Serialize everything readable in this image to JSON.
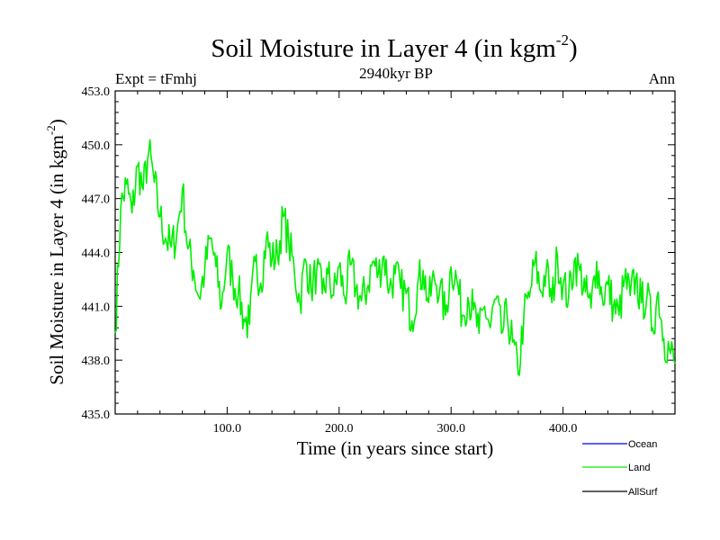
{
  "chart_data": {
    "type": "line",
    "title": "Soil Moisture in Layer 4 (in kgm",
    "title_sup": "-2",
    "title_close": ")",
    "subtitle": "2940kyr BP",
    "left_label": "Expt = tFmhj",
    "right_label": "Ann",
    "xlabel": "Time (in years since start)",
    "ylabel": "Soil Moisture in Layer 4 (in kgm",
    "ylabel_sup": "-2",
    "ylabel_close": ")",
    "xlim": [
      0,
      500
    ],
    "ylim": [
      435,
      453
    ],
    "x_ticks": [
      100,
      200,
      300,
      400
    ],
    "x_tick_labels": [
      "100.0",
      "200.0",
      "300.0",
      "400.0"
    ],
    "y_ticks": [
      435,
      438,
      441,
      444,
      447,
      450,
      453
    ],
    "y_tick_labels": [
      "435.0",
      "438.0",
      "441.0",
      "444.0",
      "447.0",
      "450.0",
      "453.0"
    ],
    "legend": [
      {
        "name": "Ocean",
        "color": "#0000ff"
      },
      {
        "name": "Land",
        "color": "#00ee00"
      },
      {
        "name": "AllSurf",
        "color": "#000000"
      }
    ],
    "series": [
      {
        "name": "Land",
        "color": "#00ee00",
        "x": [
          0,
          5,
          10,
          15,
          20,
          25,
          30,
          35,
          40,
          45,
          50,
          55,
          60,
          65,
          70,
          75,
          80,
          85,
          90,
          95,
          100,
          105,
          110,
          115,
          120,
          125,
          130,
          135,
          140,
          145,
          150,
          155,
          160,
          165,
          170,
          175,
          180,
          185,
          190,
          195,
          200,
          205,
          210,
          215,
          220,
          225,
          230,
          235,
          240,
          245,
          250,
          255,
          260,
          265,
          270,
          275,
          280,
          285,
          290,
          295,
          300,
          305,
          310,
          315,
          320,
          325,
          330,
          335,
          340,
          345,
          350,
          355,
          360,
          365,
          370,
          375,
          380,
          385,
          390,
          395,
          400,
          405,
          410,
          415,
          420,
          425,
          430,
          435,
          440,
          445,
          450,
          455,
          460,
          465,
          470,
          475,
          480,
          485,
          490,
          495,
          500
        ],
        "values": [
          439.5,
          446.5,
          447.8,
          446.2,
          448.8,
          447.5,
          449.6,
          447.9,
          446.0,
          444.8,
          444.3,
          445.0,
          447.5,
          444.2,
          443.0,
          441.5,
          443.0,
          444.8,
          443.2,
          441.0,
          444.0,
          442.5,
          441.8,
          440.3,
          440.0,
          443.5,
          442.3,
          444.8,
          443.6,
          443.8,
          446.0,
          444.6,
          443.0,
          441.2,
          443.6,
          442.0,
          443.0,
          441.7,
          442.8,
          441.6,
          443.2,
          441.5,
          443.3,
          442.0,
          441.3,
          442.0,
          443.5,
          442.8,
          443.8,
          442.0,
          442.8,
          442.0,
          441.7,
          440.2,
          442.2,
          443.0,
          441.2,
          442.6,
          442.0,
          440.5,
          443.2,
          442.5,
          440.5,
          441.5,
          440.8,
          439.5,
          441.0,
          439.8,
          441.4,
          439.5,
          440.5,
          439.0,
          437.2,
          440.5,
          441.5,
          443.5,
          441.8,
          443.0,
          441.2,
          443.8,
          442.2,
          441.5,
          443.5,
          443.0,
          441.8,
          440.9,
          443.5,
          441.5,
          442.2,
          441.0,
          440.5,
          442.5,
          441.6,
          442.6,
          441.2,
          441.6,
          439.8,
          441.8,
          439.2,
          438.6,
          437.8
        ]
      }
    ]
  }
}
